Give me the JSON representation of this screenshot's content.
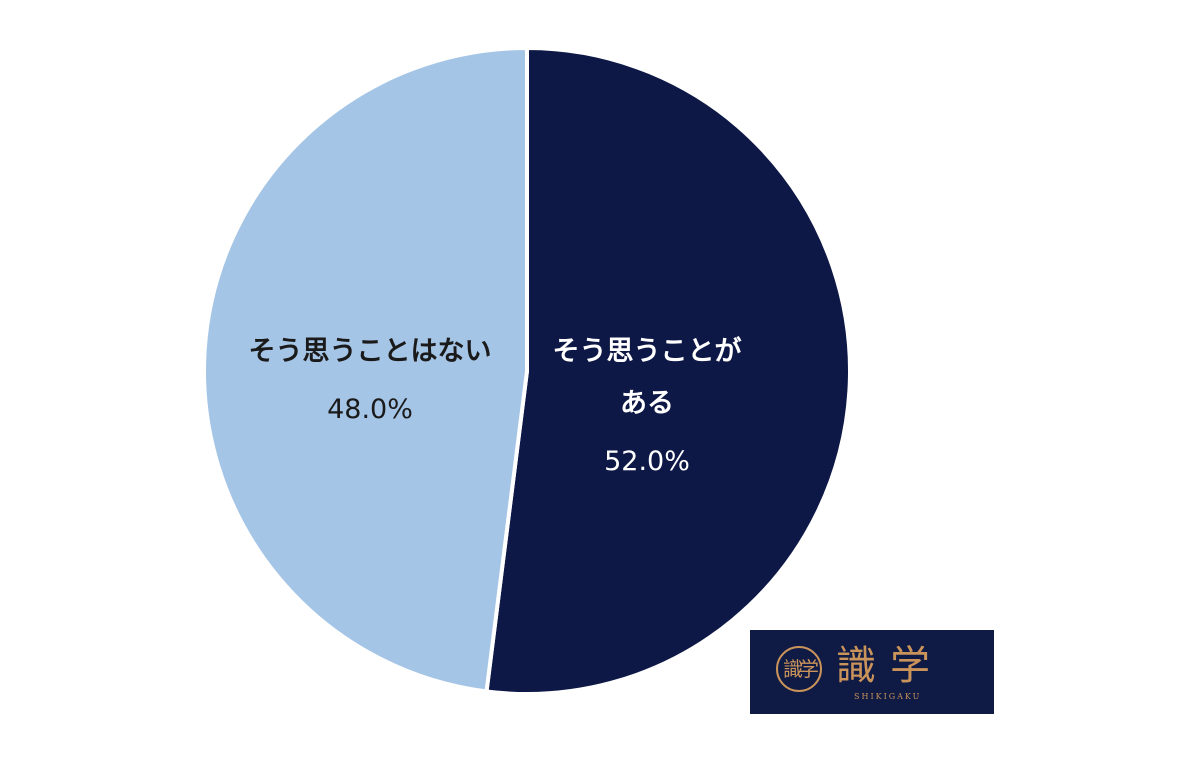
{
  "chart_data": {
    "type": "pie",
    "slices": [
      {
        "label_lines": [
          "そう思うことが",
          "ある"
        ],
        "value": 52.0,
        "value_label": "52.0%",
        "color": "#0e1846"
      },
      {
        "label_lines": [
          "そう思うことはない"
        ],
        "value": 48.0,
        "value_label": "48.0%",
        "color": "#a5c5e6"
      }
    ],
    "start": "12 o'clock",
    "direction": "clockwise",
    "legend": "none"
  },
  "logo": {
    "seal_text": "識学",
    "name": "識学",
    "roman": "SHIKIGAKU"
  }
}
